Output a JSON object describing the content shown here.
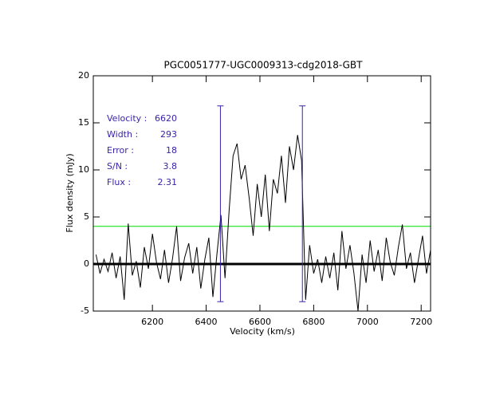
{
  "chart_data": {
    "type": "line",
    "title": "PGC0051777-UGC0009313-cdg2018-GBT",
    "xlabel": "Velocity (km/s)",
    "ylabel": "Flux density (mJy)",
    "xlim": [
      5980,
      7235
    ],
    "ylim": [
      -5,
      20
    ],
    "xticks": [
      6200,
      6400,
      6600,
      6800,
      7000,
      7200
    ],
    "yticks": [
      -5,
      0,
      5,
      10,
      15,
      20
    ],
    "x": [
      5990,
      6005,
      6020,
      6035,
      6050,
      6065,
      6080,
      6095,
      6110,
      6125,
      6140,
      6155,
      6170,
      6185,
      6200,
      6215,
      6230,
      6245,
      6260,
      6275,
      6290,
      6305,
      6320,
      6335,
      6350,
      6365,
      6380,
      6395,
      6410,
      6425,
      6440,
      6455,
      6470,
      6485,
      6500,
      6515,
      6530,
      6545,
      6560,
      6575,
      6590,
      6605,
      6620,
      6635,
      6650,
      6665,
      6680,
      6695,
      6710,
      6725,
      6740,
      6755,
      6770,
      6785,
      6800,
      6815,
      6830,
      6845,
      6860,
      6875,
      6890,
      6905,
      6920,
      6935,
      6950,
      6965,
      6980,
      6995,
      7010,
      7025,
      7040,
      7055,
      7070,
      7085,
      7100,
      7115,
      7130,
      7145,
      7160,
      7175,
      7190,
      7205,
      7220,
      7235
    ],
    "series": [
      {
        "color": "#000000",
        "values": [
          1,
          -1,
          0.5,
          -0.8,
          1.2,
          -1.5,
          0.8,
          -3.8,
          4.3,
          -1.2,
          0.3,
          -2.5,
          1.8,
          -0.5,
          3.2,
          0.2,
          -1.6,
          1.5,
          -2,
          0.6,
          4,
          -1.8,
          0.7,
          2.2,
          -1,
          1.8,
          -2.6,
          0.5,
          2.8,
          -3.5,
          1,
          5.2,
          -1.5,
          5.5,
          11.5,
          12.8,
          9,
          10.5,
          7,
          3,
          8.5,
          5,
          9.5,
          3.5,
          9,
          7.5,
          11.5,
          6.5,
          12.5,
          10,
          13.7,
          11,
          -3.8,
          2,
          -1,
          0.5,
          -2,
          0.8,
          -1.5,
          1.2,
          -2.8,
          3.5,
          -0.5,
          2,
          -1,
          -5,
          1,
          -2,
          2.5,
          -0.8,
          1.5,
          -1.8,
          2.8,
          0.2,
          -1.2,
          1.8,
          4.2,
          -0.5,
          1.2,
          -2,
          0.5,
          3,
          -1,
          1.5
        ]
      }
    ],
    "reference_lines": [
      {
        "value": 0,
        "color": "#000000"
      },
      {
        "value": 4,
        "color": "#00dd00"
      }
    ],
    "markers": {
      "color": "#3a22a8",
      "x": [
        6453,
        6758
      ],
      "y": [
        -4,
        16.8
      ]
    },
    "stats": [
      {
        "label": "Velocity :",
        "value": "6620"
      },
      {
        "label": "Width :",
        "value": "293"
      },
      {
        "label": "Error :",
        "value": "18"
      },
      {
        "label": "S/N :",
        "value": "3.8"
      },
      {
        "label": "Flux :",
        "value": "2.31"
      }
    ],
    "stats_color": "#3a22a8"
  }
}
